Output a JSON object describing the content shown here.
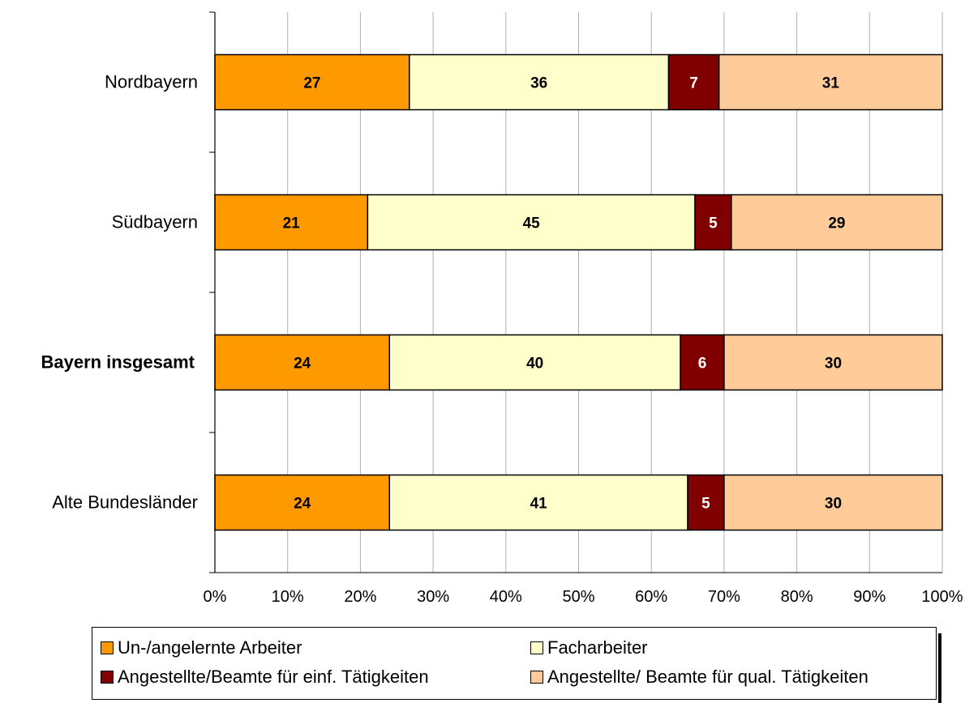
{
  "chart_data": {
    "type": "bar",
    "orientation": "horizontal",
    "stacked": "percent",
    "categories": [
      "Nordbayern",
      "Südbayern",
      "Bayern insgesamt",
      "Alte Bundesländer"
    ],
    "bold_categories": [
      "Bayern insgesamt"
    ],
    "series": [
      {
        "name": "Un-/angelernte Arbeiter",
        "color": "#ff9900",
        "label_color": "#000000",
        "values": [
          27,
          21,
          24,
          24
        ]
      },
      {
        "name": "Facharbeiter",
        "color": "#ffffcc",
        "label_color": "#000000",
        "values": [
          36,
          45,
          40,
          41
        ]
      },
      {
        "name": "Angestellte/Beamte für einf. Tätigkeiten",
        "color": "#800000",
        "label_color": "#ffffff",
        "values": [
          7,
          5,
          6,
          5
        ]
      },
      {
        "name": "Angestellte/ Beamte für qual. Tätigkeiten",
        "color": "#ffcc99",
        "label_color": "#000000",
        "values": [
          31,
          29,
          30,
          30
        ]
      }
    ],
    "x_ticks": [
      "0%",
      "10%",
      "20%",
      "30%",
      "40%",
      "50%",
      "60%",
      "70%",
      "80%",
      "90%",
      "100%"
    ],
    "xlim": [
      0,
      100
    ],
    "grid": true,
    "legend_position": "bottom"
  }
}
